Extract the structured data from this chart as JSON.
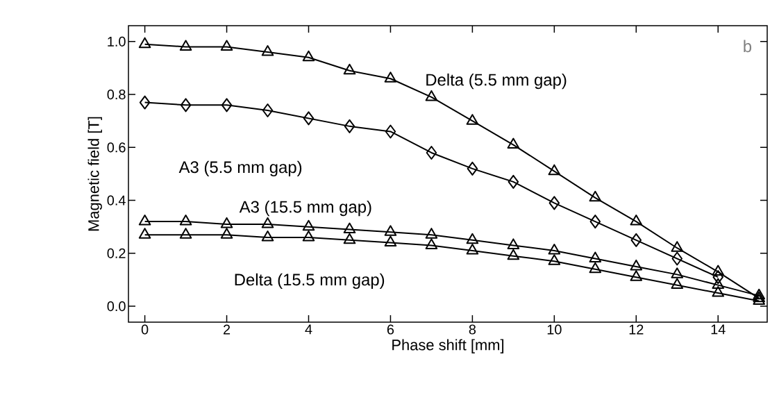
{
  "chart_data": {
    "type": "line",
    "xlabel": "Phase shift [mm]",
    "ylabel": "Magnetic field [T]",
    "x": [
      0,
      1,
      2,
      3,
      4,
      5,
      6,
      7,
      8,
      9,
      10,
      11,
      12,
      13,
      14,
      15
    ],
    "series": [
      {
        "name": "Delta (5.5 mm gap)",
        "color": "#000000",
        "marker": "triangle",
        "values": [
          0.99,
          0.98,
          0.98,
          0.96,
          0.94,
          0.89,
          0.86,
          0.79,
          0.7,
          0.61,
          0.51,
          0.41,
          0.32,
          0.22,
          0.13,
          0.03
        ]
      },
      {
        "name": "A3 (5.5 mm gap)",
        "color": "#000000",
        "marker": "diamond",
        "values": [
          0.77,
          0.76,
          0.76,
          0.74,
          0.71,
          0.68,
          0.66,
          0.58,
          0.52,
          0.47,
          0.39,
          0.32,
          0.25,
          0.18,
          0.11,
          null
        ]
      },
      {
        "name": "A3 (15.5 mm gap)",
        "color": "#000000",
        "marker": "triangle",
        "values": [
          0.32,
          0.32,
          0.31,
          0.31,
          0.3,
          0.29,
          0.28,
          0.27,
          0.25,
          0.23,
          0.21,
          0.18,
          0.15,
          0.12,
          0.08,
          0.04
        ]
      },
      {
        "name": "Delta (15.5 mm gap)",
        "color": "#000000",
        "marker": "triangle",
        "values": [
          0.27,
          0.27,
          0.27,
          0.26,
          0.26,
          0.25,
          0.24,
          0.23,
          0.21,
          0.19,
          0.17,
          0.14,
          0.11,
          0.08,
          0.05,
          0.02
        ]
      }
    ],
    "xlim": [
      -0.4,
      15.2
    ],
    "ylim": [
      -0.06,
      1.06
    ],
    "xticks": [
      0,
      2,
      4,
      6,
      8,
      10,
      12,
      14
    ],
    "yticks": [
      {
        "value": 0,
        "label": "0.0"
      },
      {
        "value": 0.2,
        "label": "0.2"
      },
      {
        "value": 0.4,
        "label": "0.4"
      },
      {
        "value": 0.6,
        "label": "0.6"
      },
      {
        "value": 0.8,
        "label": "0.8"
      },
      {
        "value": 1,
        "label": "1.0"
      }
    ],
    "annotations": [
      "b"
    ],
    "grid": false,
    "line_style": "solid"
  }
}
